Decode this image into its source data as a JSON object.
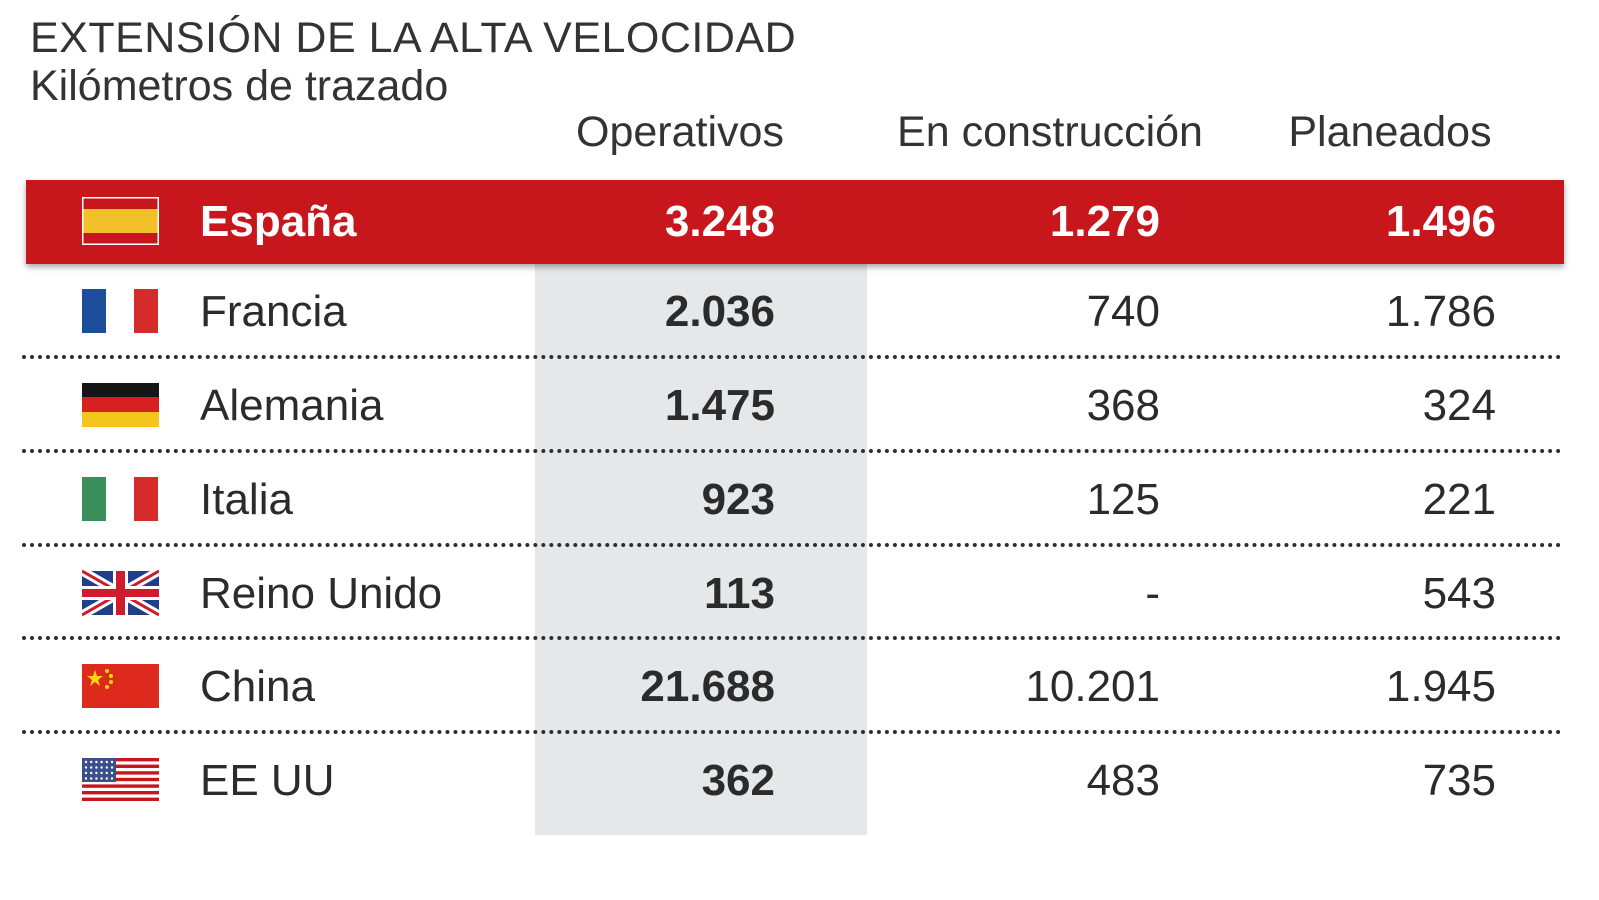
{
  "title": "EXTENSIÓN DE LA ALTA VELOCIDAD",
  "subtitle": "Kilómetros de trazado",
  "chart_data": {
    "type": "table",
    "title": "EXTENSIÓN DE LA ALTA VELOCIDAD",
    "subtitle": "Kilómetros de trazado",
    "columns": [
      "Operativos",
      "En construcción",
      "Planeados"
    ],
    "rows": [
      {
        "country": "España",
        "flag": "spain-flag-icon",
        "operativos": "3.248",
        "construccion": "1.279",
        "planeados": "1.496",
        "highlight": true
      },
      {
        "country": "Francia",
        "flag": "france-flag-icon",
        "operativos": "2.036",
        "construccion": "740",
        "planeados": "1.786"
      },
      {
        "country": "Alemania",
        "flag": "germany-flag-icon",
        "operativos": "1.475",
        "construccion": "368",
        "planeados": "324"
      },
      {
        "country": "Italia",
        "flag": "italy-flag-icon",
        "operativos": "923",
        "construccion": "125",
        "planeados": "221"
      },
      {
        "country": "Reino Unido",
        "flag": "uk-flag-icon",
        "operativos": "113",
        "construccion": "-",
        "planeados": "543"
      },
      {
        "country": "China",
        "flag": "china-flag-icon",
        "operativos": "21.688",
        "construccion": "10.201",
        "planeados": "1.945"
      },
      {
        "country": "EE UU",
        "flag": "usa-flag-icon",
        "operativos": "362",
        "construccion": "483",
        "planeados": "735"
      }
    ]
  },
  "colors": {
    "highlight": "#c8161d",
    "shade": "#e6e7e9",
    "text": "#2b2b2b"
  }
}
